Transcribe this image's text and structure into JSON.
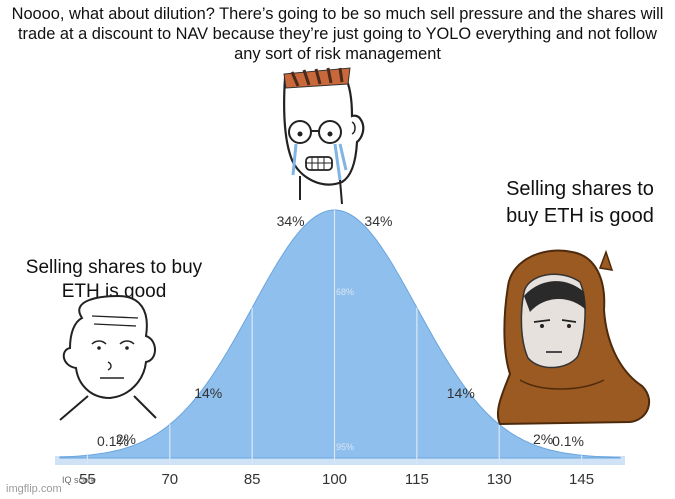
{
  "captions": {
    "top": "Noooo, what about dilution? There’s going to be so much sell pressure and the shares will trade at a discount to NAV because they’re just going to YOLO everything and not follow any sort of risk management",
    "right": "Selling shares to buy ETH is good",
    "left": "Selling shares to buy ETH is good"
  },
  "watermark": "imgflip.com",
  "chart_data": {
    "type": "area",
    "axis_title": "IQ score",
    "x_ticks": [
      "55",
      "70",
      "85",
      "100",
      "115",
      "130",
      "145"
    ],
    "mean": 100,
    "sd": 15,
    "segment_percents": [
      "0.1%",
      "2%",
      "14%",
      "34%",
      "34%",
      "14%",
      "2%",
      "0.1%"
    ],
    "inner_labels": [
      "68%",
      "95%"
    ],
    "fill_color": "#8fbfec",
    "stroke_color": "#6aa5de"
  },
  "characters": [
    {
      "name": "crying-wojak",
      "position": "top-center"
    },
    {
      "name": "simple-wojak",
      "position": "left"
    },
    {
      "name": "hooded-monk",
      "position": "right"
    }
  ]
}
